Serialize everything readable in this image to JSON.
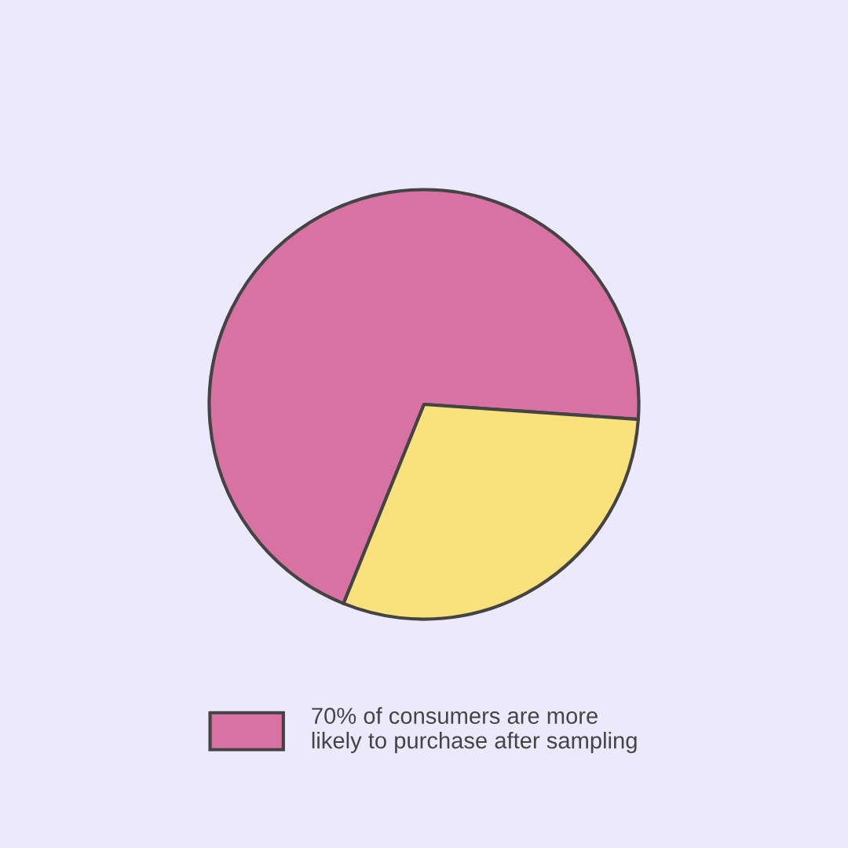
{
  "chart_data": {
    "type": "pie",
    "categories": [
      "70% of consumers are more\nlikely to purchase after sampling",
      null
    ],
    "values": [
      70,
      30
    ],
    "colors": [
      "#d872a3",
      "#f9e17b"
    ],
    "legend": "bottom"
  }
}
